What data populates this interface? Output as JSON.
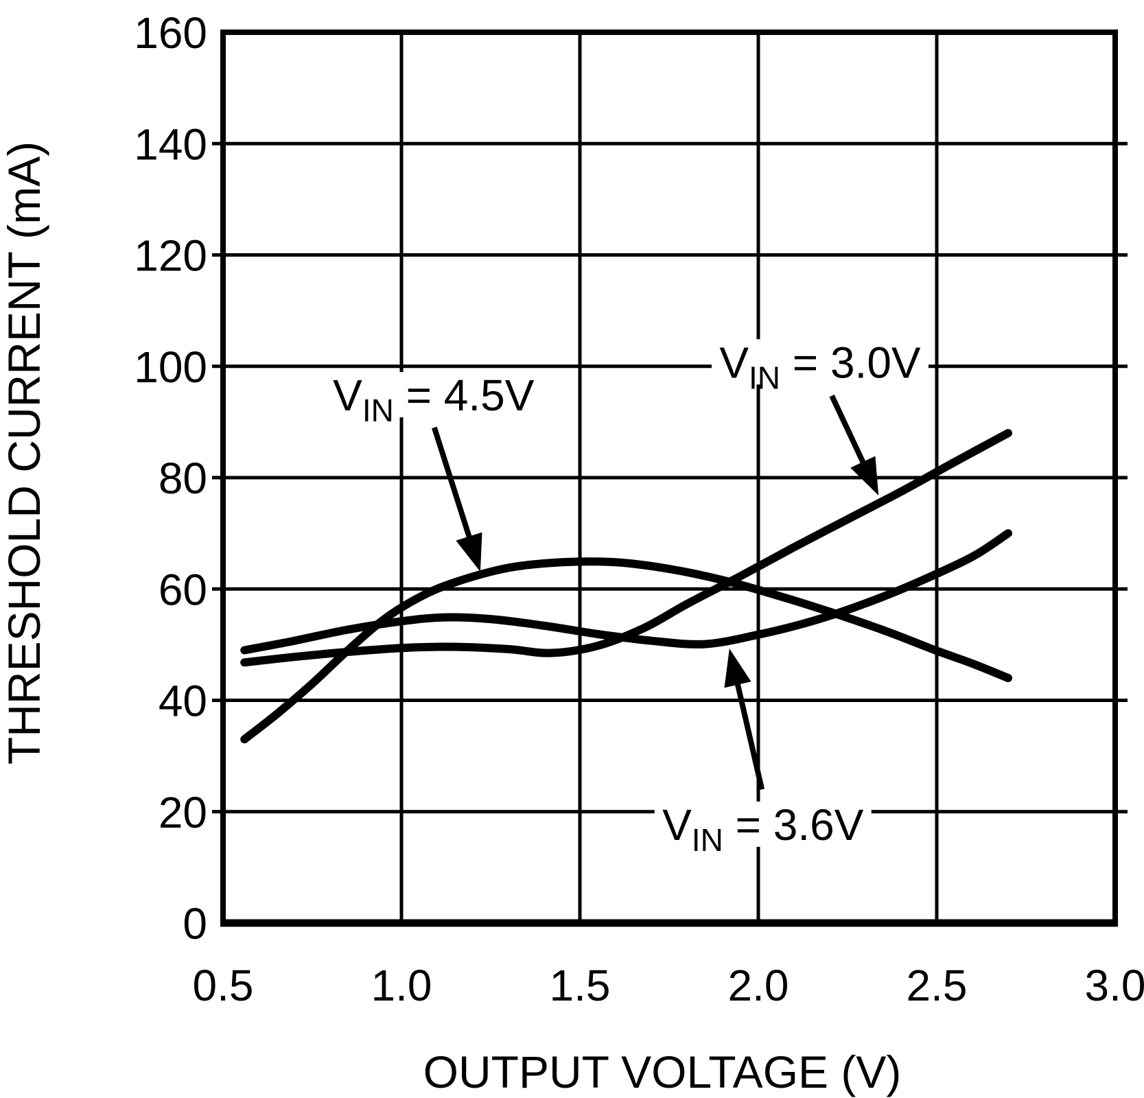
{
  "figure": {
    "background_color": "#ffffff",
    "line_color": "#000000"
  },
  "chart_data": {
    "type": "line",
    "title": "",
    "xlabel": "OUTPUT VOLTAGE (V)",
    "ylabel": "THRESHOLD CURRENT (mA)",
    "xlim": [
      0.5,
      3.0
    ],
    "ylim": [
      0,
      160
    ],
    "x_ticks": [
      0.5,
      1.0,
      1.5,
      2.0,
      2.5,
      3.0
    ],
    "x_tick_labels": [
      "0.5",
      "1.0",
      "1.5",
      "2.0",
      "2.5",
      "3.0"
    ],
    "y_ticks": [
      0,
      20,
      40,
      60,
      80,
      100,
      120,
      140,
      160
    ],
    "y_tick_labels": [
      "0",
      "20",
      "40",
      "60",
      "80",
      "100",
      "120",
      "140",
      "160"
    ],
    "grid": true,
    "legend_position": "none",
    "series": [
      {
        "name": "VIN = 4.5V",
        "label_main": "V",
        "label_sub": "IN",
        "label_rest": " = 4.5V",
        "points": [
          [
            0.56,
            33
          ],
          [
            0.65,
            37.5
          ],
          [
            0.75,
            43
          ],
          [
            0.85,
            49
          ],
          [
            0.95,
            54.5
          ],
          [
            1.05,
            58.5
          ],
          [
            1.15,
            61.2
          ],
          [
            1.3,
            63.8
          ],
          [
            1.45,
            64.8
          ],
          [
            1.6,
            64.8
          ],
          [
            1.75,
            63.6
          ],
          [
            1.9,
            61.6
          ],
          [
            2.05,
            58.9
          ],
          [
            2.2,
            55.9
          ],
          [
            2.35,
            52.6
          ],
          [
            2.5,
            48.9
          ],
          [
            2.6,
            46.6
          ],
          [
            2.7,
            44
          ]
        ]
      },
      {
        "name": "VIN = 3.6V",
        "label_main": "V",
        "label_sub": "IN",
        "label_rest": " = 3.6V",
        "points": [
          [
            0.56,
            49
          ],
          [
            0.7,
            50.7
          ],
          [
            0.85,
            52.7
          ],
          [
            1.0,
            54.2
          ],
          [
            1.12,
            54.9
          ],
          [
            1.25,
            54.6
          ],
          [
            1.4,
            53.4
          ],
          [
            1.55,
            51.9
          ],
          [
            1.7,
            50.7
          ],
          [
            1.85,
            50.1
          ],
          [
            2.0,
            51.8
          ],
          [
            2.15,
            54.2
          ],
          [
            2.3,
            57.4
          ],
          [
            2.45,
            61.3
          ],
          [
            2.6,
            65.8
          ],
          [
            2.7,
            70
          ]
        ]
      },
      {
        "name": "VIN = 3.0V",
        "label_main": "V",
        "label_sub": "IN",
        "label_rest": " = 3.0V",
        "points": [
          [
            0.56,
            46.8
          ],
          [
            0.7,
            47.8
          ],
          [
            0.85,
            48.7
          ],
          [
            1.0,
            49.4
          ],
          [
            1.15,
            49.6
          ],
          [
            1.3,
            49.2
          ],
          [
            1.42,
            48.5
          ],
          [
            1.55,
            49.8
          ],
          [
            1.68,
            53
          ],
          [
            1.8,
            57.3
          ],
          [
            1.95,
            62.3
          ],
          [
            2.1,
            67.5
          ],
          [
            2.25,
            72.5
          ],
          [
            2.4,
            77.5
          ],
          [
            2.55,
            82.8
          ],
          [
            2.7,
            88
          ]
        ]
      }
    ],
    "annotations": [
      {
        "series": "VIN = 4.5V",
        "label_main": "V",
        "label_sub": "IN",
        "label_rest": " = 4.5V",
        "label_center": [
          1.09,
          94.9
        ],
        "arrow_from": [
          1.092,
          89.0
        ],
        "arrow_to": [
          1.221,
          63.1
        ]
      },
      {
        "series": "VIN = 3.0V",
        "label_main": "V",
        "label_sub": "IN",
        "label_rest": " = 3.0V",
        "label_center": [
          2.173,
          100.8
        ],
        "arrow_from": [
          2.206,
          94.7
        ],
        "arrow_to": [
          2.337,
          76.8
        ]
      },
      {
        "series": "VIN = 3.6V",
        "label_main": "V",
        "label_sub": "IN",
        "label_rest": " = 3.6V",
        "label_center": [
          2.013,
          17.75
        ],
        "arrow_from": [
          2.01,
          24.0
        ],
        "arrow_to": [
          1.919,
          49.3
        ]
      }
    ]
  }
}
